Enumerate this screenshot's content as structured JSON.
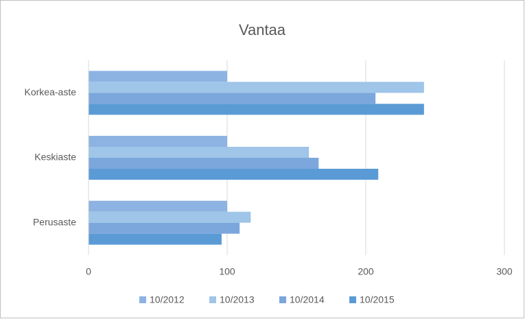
{
  "chart_data": {
    "type": "hbar",
    "title": "Vantaa",
    "categories": [
      "Perusaste",
      "Keskiaste",
      "Korkea-aste"
    ],
    "series": [
      {
        "name": "10/2012",
        "color": "#8db3e2",
        "values": [
          100,
          100,
          100
        ]
      },
      {
        "name": "10/2013",
        "color": "#9fc5e8",
        "values": [
          117,
          159,
          242
        ]
      },
      {
        "name": "10/2014",
        "color": "#7ba7dc",
        "values": [
          109,
          166,
          207
        ]
      },
      {
        "name": "10/2015",
        "color": "#5b9bd5",
        "values": [
          96,
          209,
          242
        ]
      }
    ],
    "xlim": [
      0,
      300
    ],
    "xticks": [
      0,
      100,
      200,
      300
    ],
    "grid": true,
    "legend": "bottom"
  }
}
